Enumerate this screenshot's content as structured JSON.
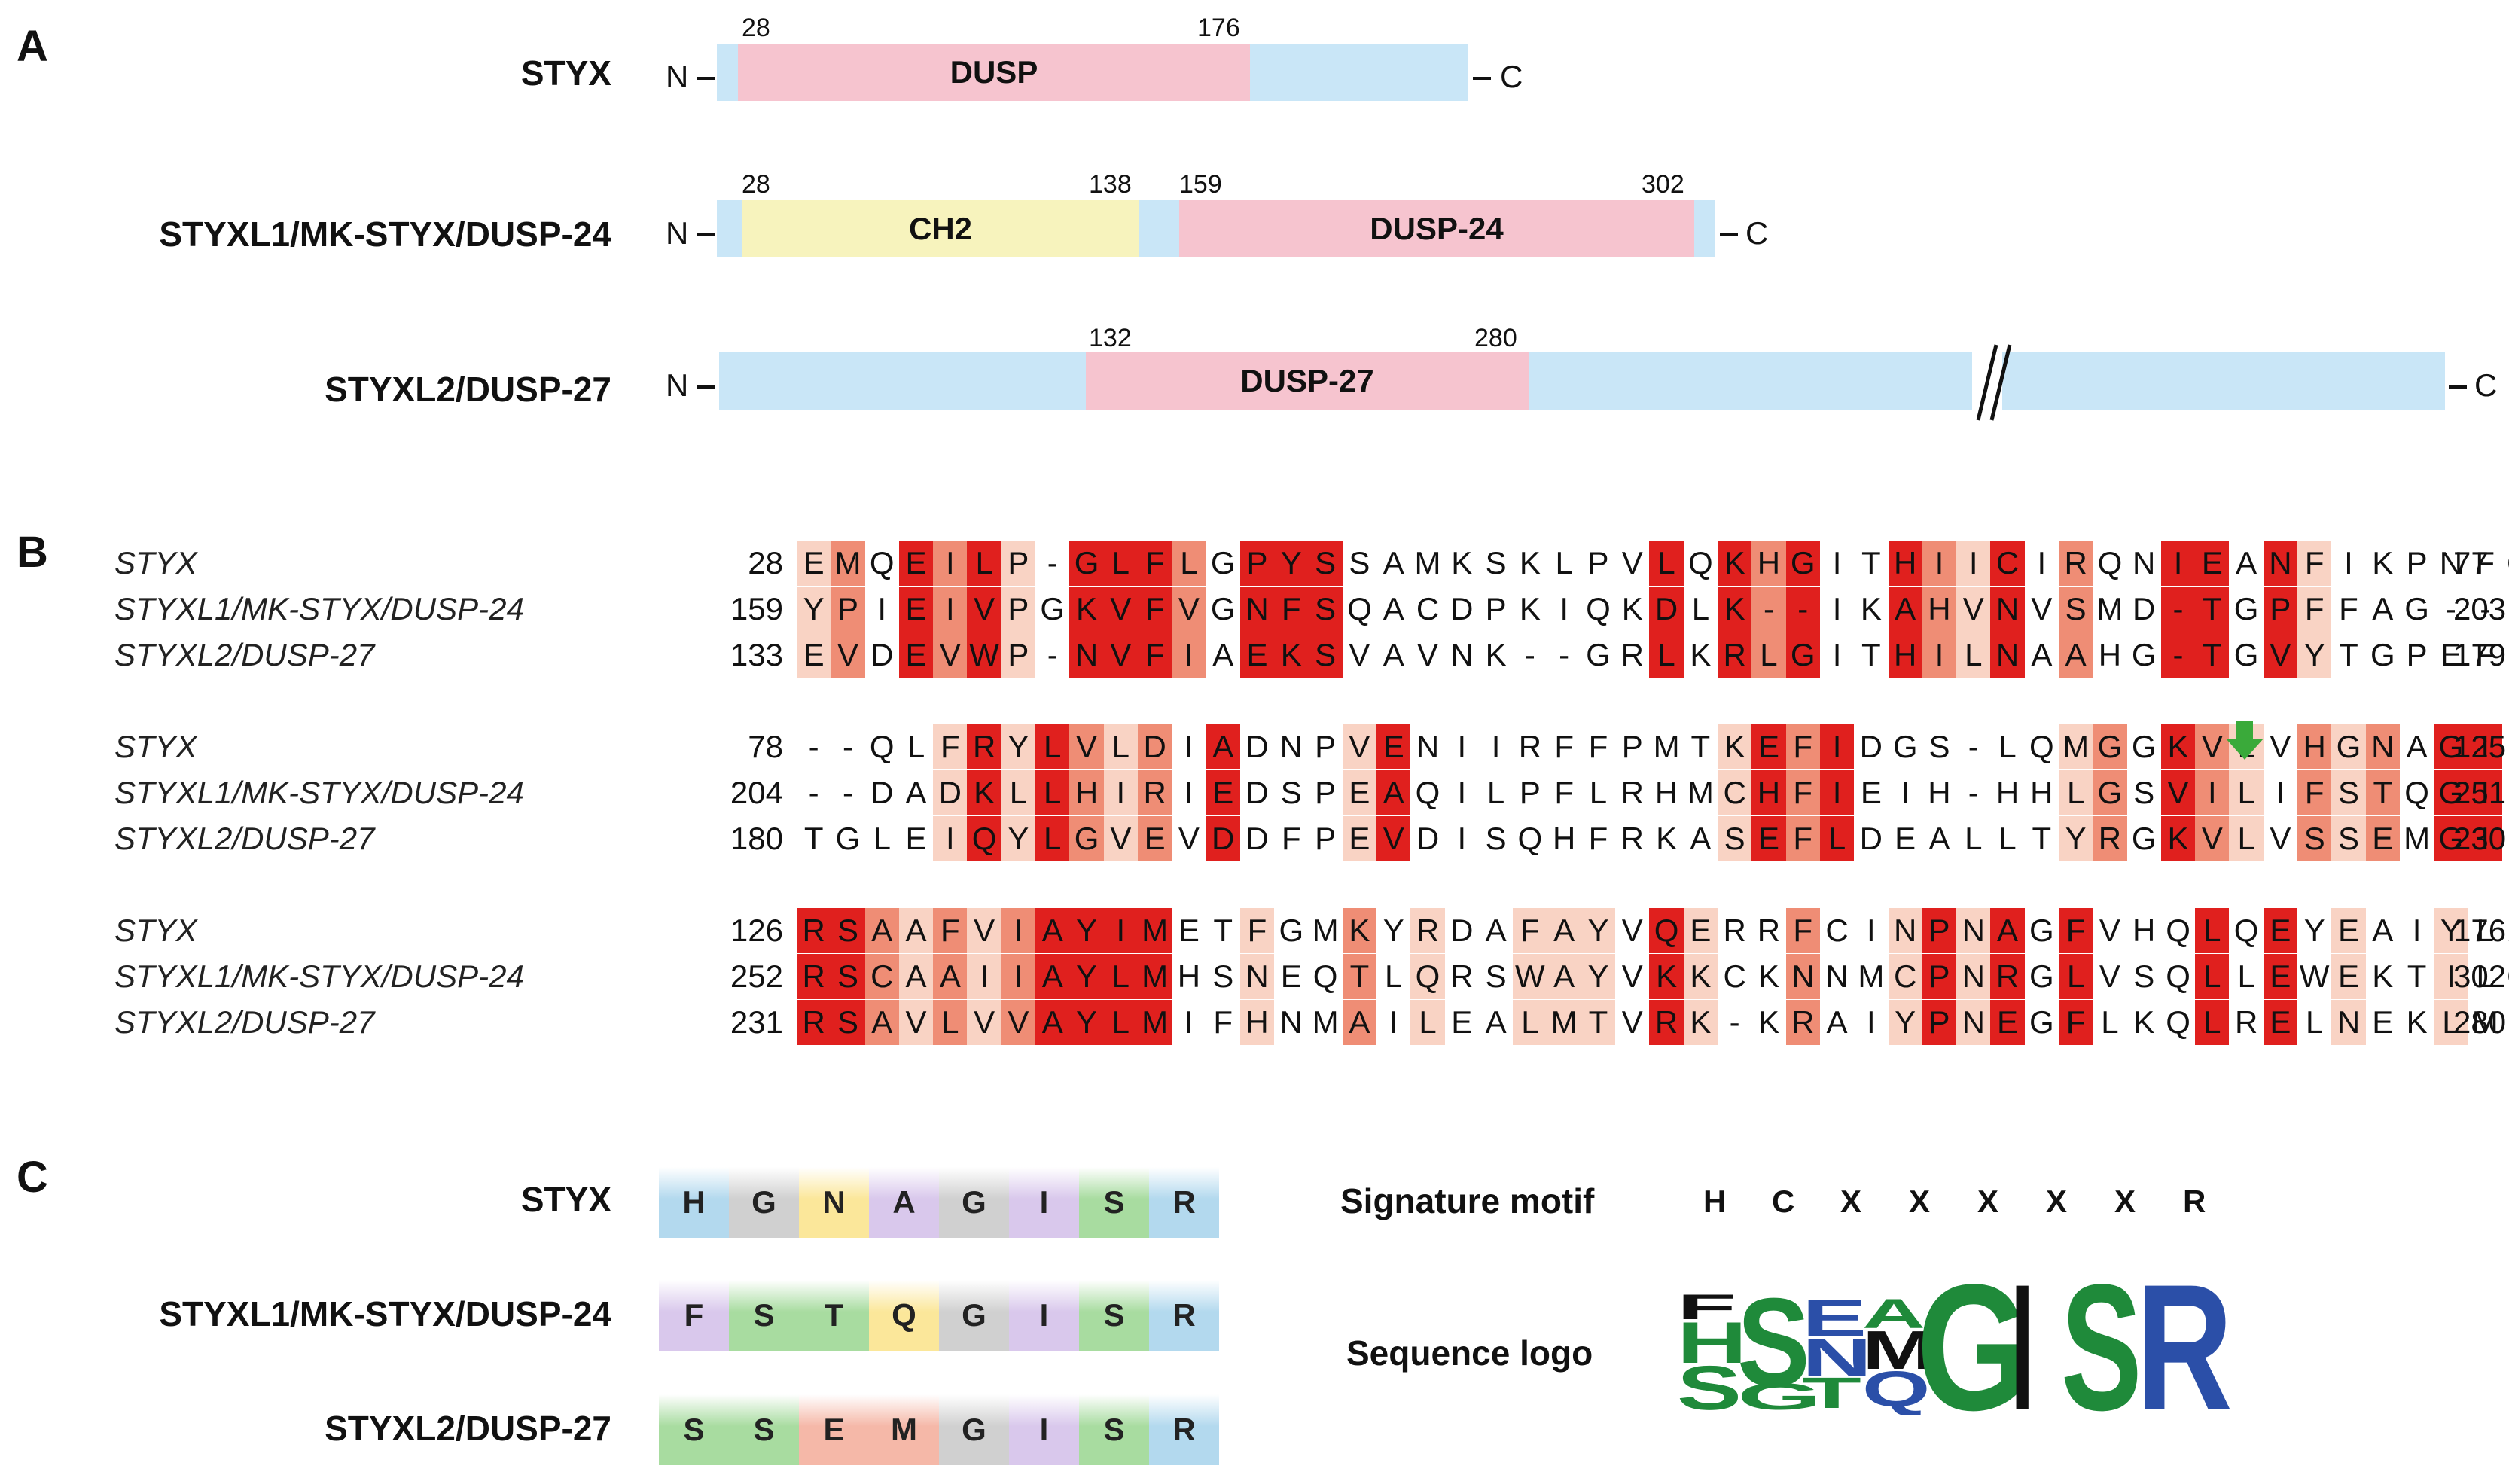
{
  "panels": {
    "a": "A",
    "b": "B",
    "c": "C"
  },
  "panel_a": {
    "n_label": "N",
    "c_label": "C",
    "proteins": [
      {
        "name": "STYX",
        "domains": [
          {
            "label": "DUSP",
            "start": "28",
            "end": "176"
          }
        ]
      },
      {
        "name": "STYXL1/MK-STYX/DUSP-24",
        "domains": [
          {
            "label": "CH2",
            "start": "28",
            "end": "138"
          },
          {
            "label": "DUSP-24",
            "start": "159",
            "end": "302"
          }
        ]
      },
      {
        "name": "STYXL2/DUSP-27",
        "domains": [
          {
            "label": "DUSP-27",
            "start": "132",
            "end": "280"
          }
        ]
      }
    ]
  },
  "panel_b": {
    "blocks": [
      {
        "rows": [
          {
            "name": "STYX",
            "start": "28",
            "end": "77",
            "seq": "EMQEILP-GLFLGPYSSAMKSKLPVLQKHGITHIICIRQNIEANFIKPNFQ",
            "shade": "12032310333203330000000003032300321302003303100000"
          },
          {
            "name": "STYXL1/MK-STYX/DUSP-24",
            "start": "159",
            "end": "203",
            "seq": "YPIEIVPGKVFVGNFSQACDPKIQKDLK--IKAHVNVSMD-TGPFFAG----",
            "shade": "12032310333203330000000003032300321302003303100000"
          },
          {
            "name": "STYXL2/DUSP-27",
            "start": "133",
            "end": "179",
            "seq": "EVDEVWP-NVFIAEKSVAVNK--GRLKRLGITHILNAAHG-TGVYTGPEFY",
            "shade": "12032310333203330000000003032300321302003303100000"
          }
        ]
      },
      {
        "rows": [
          {
            "name": "STYX",
            "start": "78",
            "end": "125",
            "seq": "--QLFRYLVLDIADNPVENIIRFFPMTKEFIDGS-LQMGGKVLVHGNAGIS",
            "shade": "00001313212030001300000000013230000001203210212033"
          },
          {
            "name": "STYXL1/MK-STYX/DUSP-24",
            "start": "204",
            "end": "251",
            "seq": "--DADKLLHIRIEDSPEAQILPFLRHMCHFIEIH-HHLGSVILIFSTQGIS",
            "shade": "00001313212030001300000000013230000001203210212033"
          },
          {
            "name": "STYXL2/DUSP-27",
            "start": "180",
            "end": "230",
            "seq": "TGLEIQYLGVEVDDFPEVDISQHFRKASEFLDEALLTYRGKVLVSSEMGIS",
            "shade": "00001313212030001300000000013230000001203210212033"
          }
        ],
        "marker": {
          "color": "#3aaa3a"
        }
      },
      {
        "rows": [
          {
            "name": "STYX",
            "start": "126",
            "end": "176",
            "seq": "RSAAFVIAYIMETFGMKYRDAFAYVQERRFCINPNAGFVHQLQEYEAIYLA",
            "shade": "33212123333001002010011103100200131303000303010010"
          },
          {
            "name": "STYXL1/MK-STYX/DUSP-24",
            "start": "252",
            "end": "302",
            "seq": "RSCAAIIAYLMHSNEQTLQRSWAYVKKCKNNMCPNRGLVSQLLEWEKTILG",
            "shade": "33212123333001002010011103100200131303000303010010"
          },
          {
            "name": "STYXL2/DUSP-27",
            "start": "231",
            "end": "280",
            "seq": "RSAVLVVAYLMIFHNMAILEALMTVRK-KRAIYPNEGFLKQLRELNEKLME",
            "shade": "33212123333001002010011103100200131303000303010010"
          }
        ]
      }
    ],
    "shade_colors": [
      "#ffffff",
      "#f9d3c4",
      "#ef8d75",
      "#e0201e"
    ]
  },
  "panel_c": {
    "motifs": [
      {
        "name": "STYX",
        "residues": [
          "H",
          "G",
          "N",
          "A",
          "G",
          "I",
          "S",
          "R"
        ]
      },
      {
        "name": "STYXL1/MK-STYX/DUSP-24",
        "residues": [
          "F",
          "S",
          "T",
          "Q",
          "G",
          "I",
          "S",
          "R"
        ]
      },
      {
        "name": "STYXL2/DUSP-27",
        "residues": [
          "S",
          "S",
          "E",
          "M",
          "G",
          "I",
          "S",
          "R"
        ]
      }
    ],
    "residue_colors": {
      "H": "#b3d9ee",
      "R": "#b3d9ee",
      "K": "#b3d9ee",
      "G": "#d0d0d0",
      "P": "#d0d0d0",
      "N": "#fbe79a",
      "Q": "#fbe79a",
      "A": "#d9c8ec",
      "I": "#d9c8ec",
      "F": "#d9c8ec",
      "M": "#f5b8a8",
      "S": "#a8dca0",
      "T": "#a8dca0",
      "E": "#f5b8a8"
    },
    "signature_label": "Signature motif",
    "signature": [
      "H",
      "C",
      "X",
      "X",
      "X",
      "X",
      "X",
      "R"
    ],
    "logo_label": "Sequence logo",
    "logo_colors": {
      "green": "#1f8a3a",
      "blue": "#2b4fa8",
      "black": "#111111"
    }
  }
}
